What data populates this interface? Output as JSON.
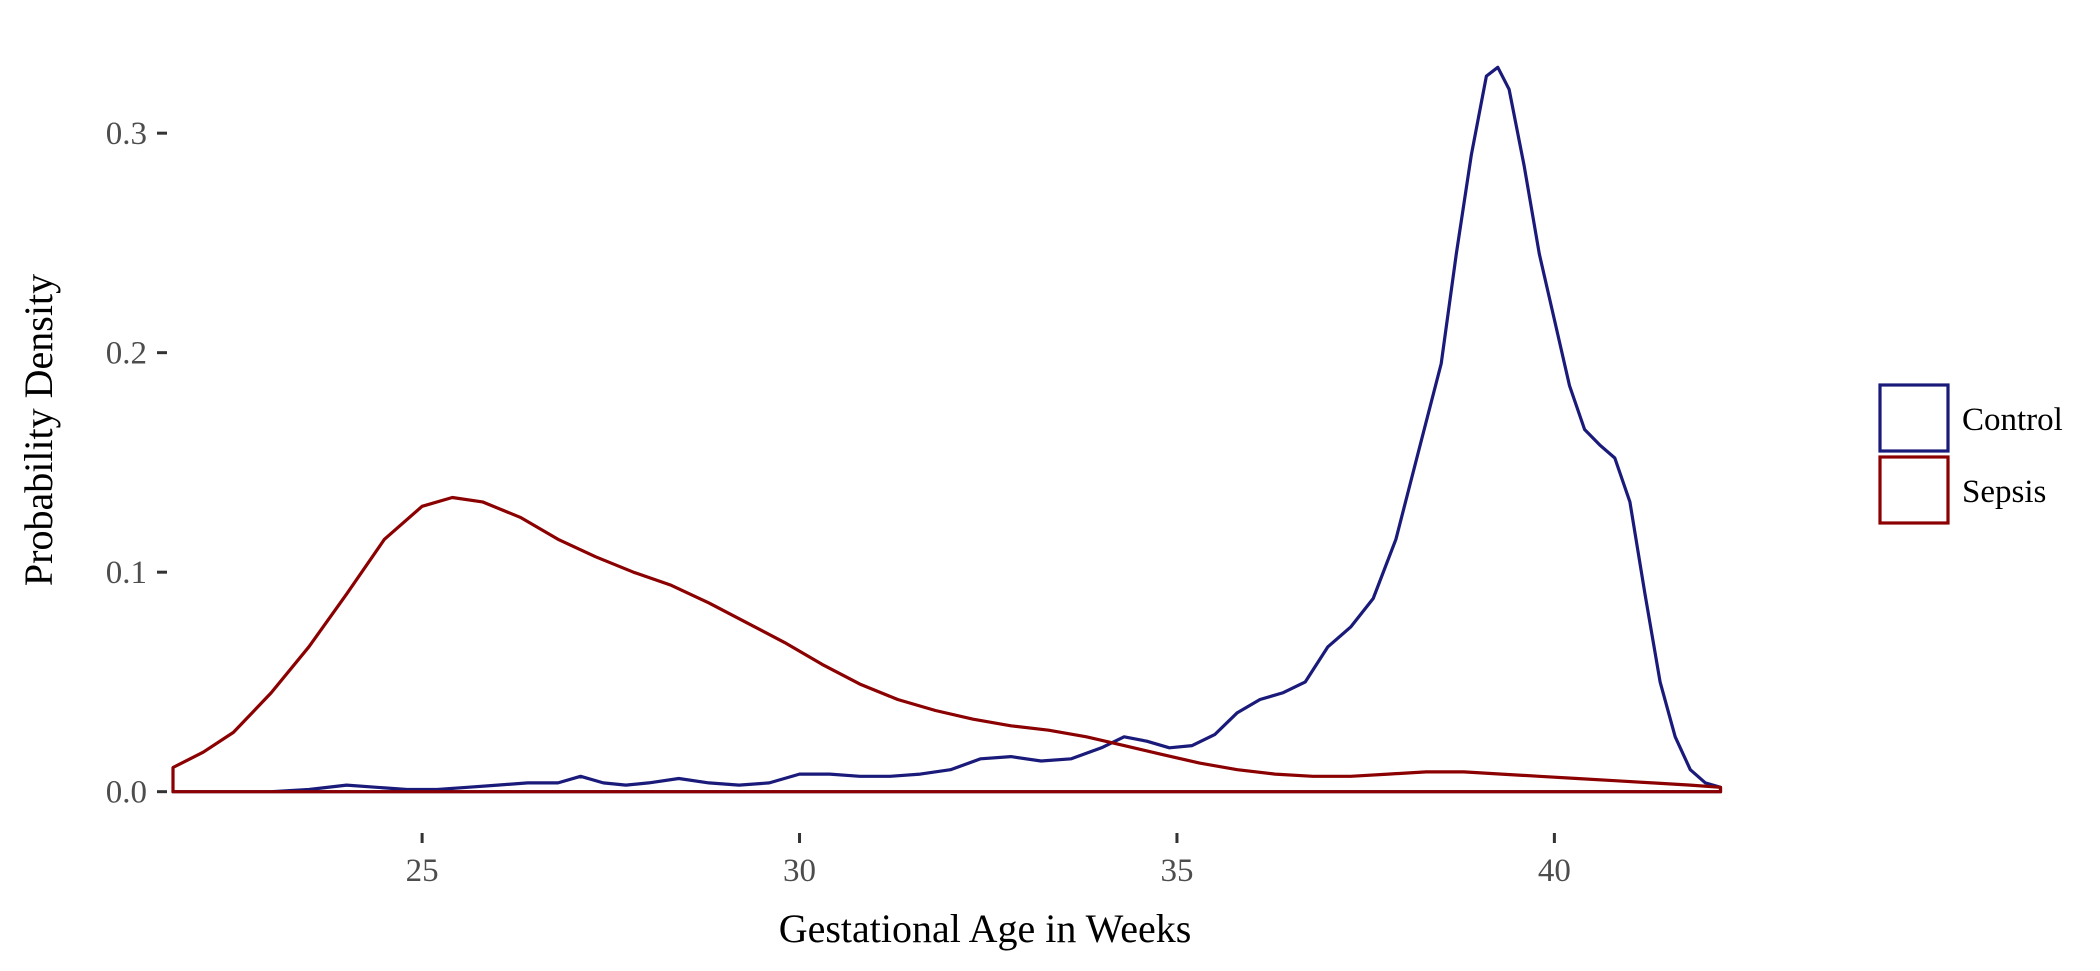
{
  "chart_data": {
    "type": "line",
    "title": "",
    "xlabel": "Gestational Age in Weeks",
    "ylabel": "Probability Density",
    "xlim": [
      21.7,
      42.3
    ],
    "ylim": [
      -0.017,
      0.347
    ],
    "x_ticks": [
      25,
      30,
      35,
      40
    ],
    "x_tick_labels": [
      "25",
      "30",
      "35",
      "40"
    ],
    "y_ticks": [
      0.0,
      0.1,
      0.2,
      0.3
    ],
    "y_tick_labels": [
      "0.0",
      "0.1",
      "0.2",
      "0.3"
    ],
    "grid": false,
    "legend_position": "right",
    "series": [
      {
        "name": "Control",
        "color": "#1a1a7a",
        "points": [
          [
            21.7,
            0.0
          ],
          [
            22.2,
            0.0
          ],
          [
            23.0,
            0.0
          ],
          [
            23.5,
            0.001
          ],
          [
            24.0,
            0.003
          ],
          [
            24.4,
            0.002
          ],
          [
            24.8,
            0.001
          ],
          [
            25.2,
            0.001
          ],
          [
            25.6,
            0.002
          ],
          [
            26.0,
            0.003
          ],
          [
            26.4,
            0.004
          ],
          [
            26.8,
            0.004
          ],
          [
            27.1,
            0.007
          ],
          [
            27.4,
            0.004
          ],
          [
            27.7,
            0.003
          ],
          [
            28.0,
            0.004
          ],
          [
            28.4,
            0.006
          ],
          [
            28.8,
            0.004
          ],
          [
            29.2,
            0.003
          ],
          [
            29.6,
            0.004
          ],
          [
            30.0,
            0.008
          ],
          [
            30.4,
            0.008
          ],
          [
            30.8,
            0.007
          ],
          [
            31.2,
            0.007
          ],
          [
            31.6,
            0.008
          ],
          [
            32.0,
            0.01
          ],
          [
            32.4,
            0.015
          ],
          [
            32.8,
            0.016
          ],
          [
            33.2,
            0.014
          ],
          [
            33.6,
            0.015
          ],
          [
            34.0,
            0.02
          ],
          [
            34.3,
            0.025
          ],
          [
            34.6,
            0.023
          ],
          [
            34.9,
            0.02
          ],
          [
            35.2,
            0.021
          ],
          [
            35.5,
            0.026
          ],
          [
            35.8,
            0.036
          ],
          [
            36.1,
            0.042
          ],
          [
            36.4,
            0.045
          ],
          [
            36.7,
            0.05
          ],
          [
            37.0,
            0.066
          ],
          [
            37.3,
            0.075
          ],
          [
            37.6,
            0.088
          ],
          [
            37.9,
            0.115
          ],
          [
            38.2,
            0.155
          ],
          [
            38.5,
            0.195
          ],
          [
            38.7,
            0.245
          ],
          [
            38.9,
            0.29
          ],
          [
            39.1,
            0.326
          ],
          [
            39.25,
            0.33
          ],
          [
            39.4,
            0.32
          ],
          [
            39.6,
            0.285
          ],
          [
            39.8,
            0.245
          ],
          [
            40.0,
            0.215
          ],
          [
            40.2,
            0.185
          ],
          [
            40.4,
            0.165
          ],
          [
            40.6,
            0.158
          ],
          [
            40.8,
            0.152
          ],
          [
            41.0,
            0.132
          ],
          [
            41.2,
            0.09
          ],
          [
            41.4,
            0.05
          ],
          [
            41.6,
            0.025
          ],
          [
            41.8,
            0.01
          ],
          [
            42.0,
            0.004
          ],
          [
            42.2,
            0.002
          ],
          [
            42.2,
            0.0
          ],
          [
            21.7,
            0.0
          ]
        ]
      },
      {
        "name": "Sepsis",
        "color": "#8b0000",
        "points": [
          [
            21.7,
            0.0
          ],
          [
            21.7,
            0.011
          ],
          [
            22.1,
            0.018
          ],
          [
            22.5,
            0.027
          ],
          [
            23.0,
            0.045
          ],
          [
            23.5,
            0.066
          ],
          [
            24.0,
            0.09
          ],
          [
            24.5,
            0.115
          ],
          [
            25.0,
            0.13
          ],
          [
            25.4,
            0.134
          ],
          [
            25.8,
            0.132
          ],
          [
            26.3,
            0.125
          ],
          [
            26.8,
            0.115
          ],
          [
            27.3,
            0.107
          ],
          [
            27.8,
            0.1
          ],
          [
            28.3,
            0.094
          ],
          [
            28.8,
            0.086
          ],
          [
            29.3,
            0.077
          ],
          [
            29.8,
            0.068
          ],
          [
            30.3,
            0.058
          ],
          [
            30.8,
            0.049
          ],
          [
            31.3,
            0.042
          ],
          [
            31.8,
            0.037
          ],
          [
            32.3,
            0.033
          ],
          [
            32.8,
            0.03
          ],
          [
            33.3,
            0.028
          ],
          [
            33.8,
            0.025
          ],
          [
            34.3,
            0.021
          ],
          [
            34.8,
            0.017
          ],
          [
            35.3,
            0.013
          ],
          [
            35.8,
            0.01
          ],
          [
            36.3,
            0.008
          ],
          [
            36.8,
            0.007
          ],
          [
            37.3,
            0.007
          ],
          [
            37.8,
            0.008
          ],
          [
            38.3,
            0.009
          ],
          [
            38.8,
            0.009
          ],
          [
            39.3,
            0.008
          ],
          [
            39.8,
            0.007
          ],
          [
            40.3,
            0.006
          ],
          [
            40.8,
            0.005
          ],
          [
            41.3,
            0.004
          ],
          [
            41.8,
            0.003
          ],
          [
            42.2,
            0.002
          ],
          [
            42.2,
            0.0
          ],
          [
            21.7,
            0.0
          ]
        ]
      }
    ]
  }
}
